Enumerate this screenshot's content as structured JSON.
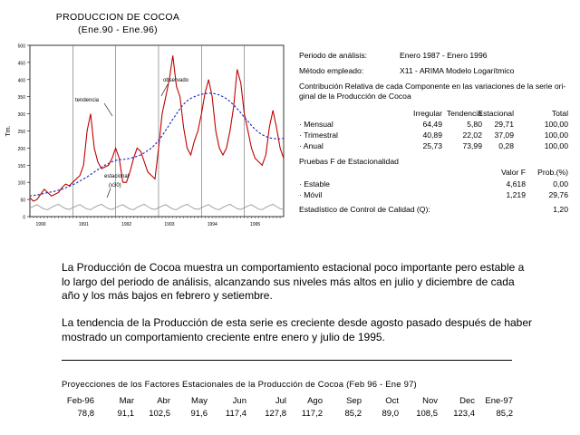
{
  "chart_data": {
    "type": "line",
    "title": "PRODUCCION DE COCOA",
    "subtitle": "(Ene.90 - Ene.96)",
    "ylabel": "Tm.",
    "ylim": [
      0,
      500
    ],
    "yticks": [
      "0",
      "50",
      "100",
      "150",
      "200",
      "250",
      "300",
      "350",
      "400",
      "450",
      "500"
    ],
    "xticks": [
      "1990",
      "1991",
      "1992",
      "1993",
      "1994",
      "1995"
    ],
    "grid": "vertical lines at each year",
    "annotations": [
      "tendencia",
      "observado",
      "estacional (x30)"
    ],
    "series": [
      {
        "name": "observado",
        "style": "solid red",
        "values": [
          55,
          45,
          50,
          65,
          80,
          70,
          60,
          65,
          70,
          85,
          95,
          90,
          100,
          110,
          120,
          150,
          250,
          300,
          200,
          160,
          140,
          145,
          150,
          170,
          200,
          170,
          100,
          100,
          130,
          170,
          200,
          190,
          160,
          130,
          120,
          110,
          200,
          300,
          350,
          400,
          470,
          380,
          350,
          260,
          200,
          180,
          220,
          250,
          300,
          360,
          400,
          350,
          250,
          200,
          180,
          200,
          250,
          320,
          430,
          390,
          300,
          250,
          200,
          170,
          160,
          150,
          180,
          260,
          310,
          260,
          200,
          170
        ]
      },
      {
        "name": "tendencia",
        "style": "dotted blue",
        "values": [
          60,
          62,
          63,
          65,
          68,
          70,
          72,
          74,
          77,
          80,
          84,
          88,
          93,
          98,
          104,
          110,
          116,
          123,
          130,
          137,
          144,
          150,
          155,
          160,
          164,
          166,
          167,
          168,
          170,
          173,
          176,
          180,
          186,
          193,
          200,
          210,
          222,
          236,
          252,
          268,
          284,
          300,
          315,
          328,
          338,
          345,
          350,
          354,
          357,
          359,
          360,
          360,
          358,
          355,
          350,
          344,
          336,
          326,
          315,
          303,
          290,
          278,
          266,
          255,
          246,
          239,
          234,
          230,
          228,
          227,
          227,
          228
        ]
      },
      {
        "name": "estacional (x30)",
        "style": "solid gray",
        "values": [
          25,
          30,
          35,
          28,
          22,
          20,
          27,
          32,
          36,
          29,
          23,
          21,
          26,
          31,
          35,
          28,
          22,
          20,
          27,
          32,
          36,
          29,
          23,
          21,
          26,
          31,
          35,
          28,
          22,
          20,
          27,
          32,
          36,
          29,
          23,
          21,
          26,
          31,
          35,
          28,
          22,
          20,
          27,
          32,
          36,
          29,
          23,
          21,
          26,
          31,
          35,
          28,
          22,
          20,
          27,
          32,
          36,
          29,
          23,
          21,
          26,
          31,
          35,
          28,
          22,
          20,
          27,
          32,
          36,
          29,
          23,
          21
        ]
      }
    ]
  },
  "info": {
    "periodo_label": "Periodo de análisis:",
    "periodo_value": "Enero 1987 - Enero 1996",
    "metodo_label": "Método empleado:",
    "metodo_value": "X11 - ARIMA Modelo Logarítmico",
    "contrib_line1": "Contribución Relativa de cada Componente en las variaciones de la serie ori-",
    "contrib_line2": "ginal de la Producción de Cocoa",
    "headers": [
      "Irregular",
      "Tendencia",
      "Estacional",
      "Total"
    ],
    "rows": [
      {
        "label": "· Mensual",
        "values": [
          "64,49",
          "5,80",
          "29,71",
          "100,00"
        ]
      },
      {
        "label": "· Trimestral",
        "values": [
          "40,89",
          "22,02",
          "37,09",
          "100,00"
        ]
      },
      {
        "label": "· Anual",
        "values": [
          "25,73",
          "73,99",
          "0,28",
          "100,00"
        ]
      }
    ],
    "pruebas_title": "Pruebas F de Estacionalidad",
    "pruebas_headers": [
      "Valor F",
      "Prob.(%)"
    ],
    "pruebas_rows": [
      {
        "label": "· Estable",
        "values": [
          "4,618",
          "0,00"
        ]
      },
      {
        "label": "· Móvil",
        "values": [
          "1,219",
          "29,76"
        ]
      }
    ],
    "estadistico_label": "Estadístico de Control de Calidad (Q):",
    "estadistico_value": "1,20"
  },
  "text": {
    "para1": "La Producción de Cocoa muestra un comportamiento estacional poco importante pero estable a lo largo del periodo de análisis, alcanzando sus niveles más altos en julio y diciembre  de cada año y los más bajos en febrero y setiembre.",
    "para2": "La tendencia de la Producción de esta serie  es creciente desde agosto pasado después de haber mostrado un comportamiento creciente entre enero y julio de 1995."
  },
  "projections": {
    "title": "Proyecciones de los Factores Estacionales de la Producción de Cocoa (Feb 96 - Ene 97)",
    "months": [
      "Feb-96",
      "Mar",
      "Abr",
      "May",
      "Jun",
      "Jul",
      "Ago",
      "Sep",
      "Oct",
      "Nov",
      "Dec",
      "Ene-97"
    ],
    "values": [
      "78,8",
      "91,1",
      "102,5",
      "91,6",
      "117,4",
      "127,8",
      "117,2",
      "85,2",
      "89,0",
      "108,5",
      "123,4",
      "85,2"
    ]
  }
}
